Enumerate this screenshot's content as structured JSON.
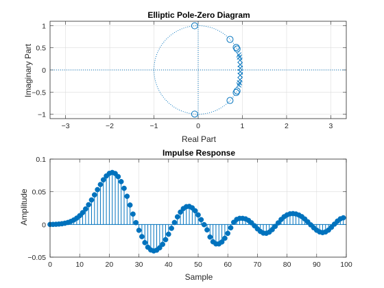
{
  "colors": {
    "series": "#0072BD",
    "axes": "#262626",
    "grid": "#dcdcdc"
  },
  "chart_data": [
    {
      "type": "scatter",
      "title": "Elliptic Pole-Zero Diagram",
      "xlabel": "Real Part",
      "ylabel": "Imaginary Part",
      "xlim": [
        -3.35,
        3.35
      ],
      "ylim": [
        -1.1,
        1.1
      ],
      "xticks": [
        -3,
        -2,
        -1,
        0,
        1,
        2,
        3
      ],
      "yticks": [
        -1,
        -0.5,
        0,
        0.5,
        1
      ],
      "grid": true,
      "unit_circle": true,
      "axis_lines": true,
      "zeros": [
        {
          "re": -0.08,
          "im": 0.997
        },
        {
          "re": -0.08,
          "im": -0.997
        },
        {
          "re": 0.72,
          "im": 0.69
        },
        {
          "re": 0.72,
          "im": -0.69
        },
        {
          "re": 0.86,
          "im": 0.51
        },
        {
          "re": 0.86,
          "im": -0.51
        },
        {
          "re": 0.88,
          "im": 0.475
        },
        {
          "re": 0.88,
          "im": -0.475
        }
      ],
      "poles": [
        {
          "re": 0.92,
          "im": 0.34
        },
        {
          "re": 0.92,
          "im": -0.34
        },
        {
          "re": 0.935,
          "im": 0.29
        },
        {
          "re": 0.935,
          "im": -0.29
        },
        {
          "re": 0.945,
          "im": 0.22
        },
        {
          "re": 0.945,
          "im": -0.22
        },
        {
          "re": 0.95,
          "im": 0.12
        },
        {
          "re": 0.95,
          "im": -0.12
        },
        {
          "re": 0.952,
          "im": 0.04
        },
        {
          "re": 0.952,
          "im": -0.04
        }
      ]
    },
    {
      "type": "stem",
      "title": "Impulse Response",
      "xlabel": "Sample",
      "ylabel": "Amplitude",
      "xlim": [
        0,
        100
      ],
      "ylim": [
        -0.05,
        0.1
      ],
      "xticks": [
        0,
        10,
        20,
        30,
        40,
        50,
        60,
        70,
        80,
        90,
        100
      ],
      "yticks": [
        -0.05,
        0,
        0.05,
        0.1
      ],
      "grid": true,
      "x": [
        0,
        1,
        2,
        3,
        4,
        5,
        6,
        7,
        8,
        9,
        10,
        11,
        12,
        13,
        14,
        15,
        16,
        17,
        18,
        19,
        20,
        21,
        22,
        23,
        24,
        25,
        26,
        27,
        28,
        29,
        30,
        31,
        32,
        33,
        34,
        35,
        36,
        37,
        38,
        39,
        40,
        41,
        42,
        43,
        44,
        45,
        46,
        47,
        48,
        49,
        50,
        51,
        52,
        53,
        54,
        55,
        56,
        57,
        58,
        59,
        60,
        61,
        62,
        63,
        64,
        65,
        66,
        67,
        68,
        69,
        70,
        71,
        72,
        73,
        74,
        75,
        76,
        77,
        78,
        79,
        80,
        81,
        82,
        83,
        84,
        85,
        86,
        87,
        88,
        89,
        90,
        91,
        92,
        93,
        94,
        95,
        96,
        97,
        98,
        99
      ],
      "values": [
        0,
        0.0001,
        0.0003,
        0.0006,
        0.0011,
        0.0019,
        0.003,
        0.0046,
        0.0068,
        0.0097,
        0.0134,
        0.0181,
        0.0237,
        0.0302,
        0.0375,
        0.0453,
        0.0533,
        0.0611,
        0.0683,
        0.0742,
        0.0781,
        0.0795,
        0.0779,
        0.0732,
        0.0655,
        0.0553,
        0.0431,
        0.0297,
        0.0159,
        0.0028,
        -0.0089,
        -0.0186,
        -0.0278,
        -0.0348,
        -0.039,
        -0.0405,
        -0.0393,
        -0.0357,
        -0.0304,
        -0.0232,
        -0.0149,
        -0.0059,
        0.003,
        0.0117,
        0.0189,
        0.0243,
        0.0272,
        0.0276,
        0.0254,
        0.0209,
        0.0146,
        0.0073,
        -0.0003,
        -0.0083,
        -0.0192,
        -0.0265,
        -0.0297,
        -0.0297,
        -0.0268,
        -0.0211,
        -0.0136,
        -0.0051,
        0.0033,
        0.0077,
        0.0093,
        0.0093,
        0.0085,
        0.0062,
        0.0025,
        -0.002,
        -0.0067,
        -0.0107,
        -0.0132,
        -0.0135,
        -0.0117,
        -0.0079,
        -0.0029,
        0.0024,
        0.0076,
        0.0118,
        0.0146,
        0.0162,
        0.0166,
        0.016,
        0.0144,
        0.0119,
        0.0083,
        0.004,
        -0.0006,
        -0.005,
        -0.0088,
        -0.0114,
        -0.0124,
        -0.0114,
        -0.0086,
        -0.0043,
        0.0005,
        0.0051,
        0.0086,
        0.0102
      ]
    }
  ]
}
